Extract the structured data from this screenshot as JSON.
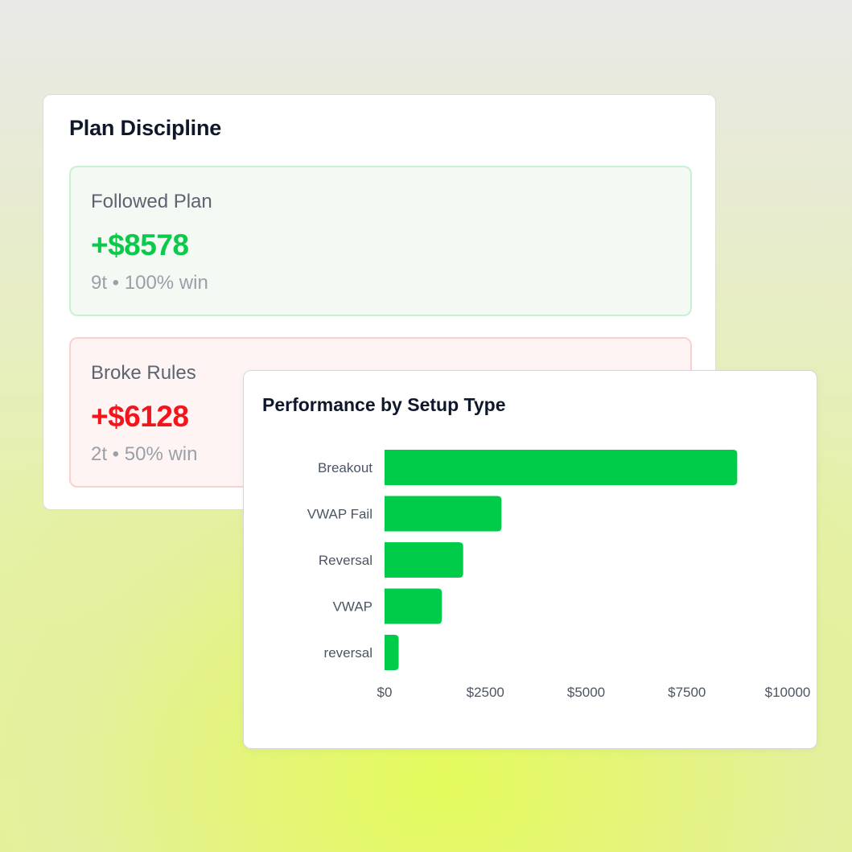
{
  "plan_discipline": {
    "title": "Plan Discipline",
    "followed": {
      "label": "Followed Plan",
      "value": "+$8578",
      "detail": "9t • 100% win",
      "color": "#0bc94b"
    },
    "broke": {
      "label": "Broke Rules",
      "value": "+$6128",
      "detail": "2t • 50% win",
      "color": "#f2151c"
    }
  },
  "setup_performance": {
    "title": "Performance by Setup Type",
    "chart_data": {
      "type": "bar",
      "orientation": "horizontal",
      "categories": [
        "Breakout",
        "VWAP Fail",
        "Reversal",
        "VWAP",
        "reversal"
      ],
      "values": [
        8750,
        2900,
        1950,
        1420,
        350
      ],
      "xlim": [
        0,
        10000
      ],
      "xticks": [
        0,
        2500,
        5000,
        7500,
        10000
      ],
      "xtick_labels": [
        "$0",
        "$2500",
        "$5000",
        "$7500",
        "$10000"
      ],
      "bar_color": "#00cc4a",
      "grid": false
    }
  }
}
